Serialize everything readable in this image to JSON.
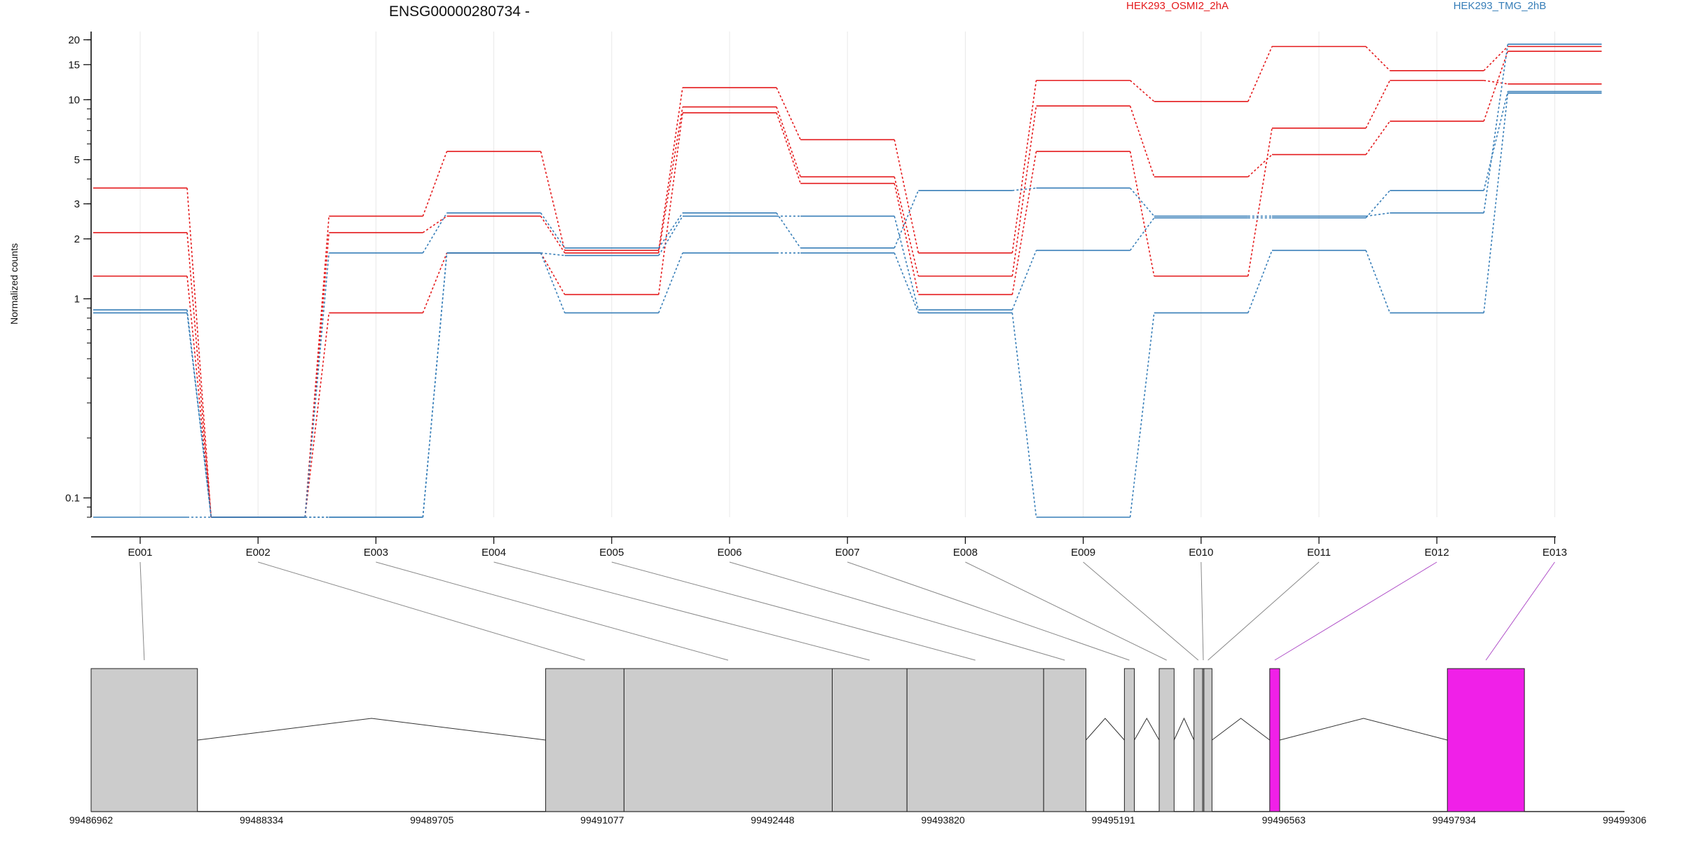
{
  "chart_data": {
    "type": "line",
    "title": "ENSG00000280734 -",
    "ylabel": "Normalized counts",
    "yscale": "log",
    "ylim": [
      0.08,
      22
    ],
    "yticks": [
      0.1,
      1,
      2,
      3,
      5,
      10,
      15,
      20
    ],
    "ytick_labels": [
      "0.1",
      "1",
      "2",
      "3",
      "5",
      "10",
      "15",
      "20"
    ],
    "grid": true,
    "legend_position": "top",
    "categories": [
      "E001",
      "E002",
      "E003",
      "E004",
      "E005",
      "E006",
      "E007",
      "E008",
      "E009",
      "E010",
      "E011",
      "E012",
      "E013"
    ],
    "groups": [
      {
        "name": "HEK293_OSMI2_2hA",
        "color": "#e41a1c"
      },
      {
        "name": "HEK293_TMG_2hB",
        "color": "#377eb8"
      }
    ],
    "series": [
      {
        "group": 0,
        "values": [
          3.6,
          0.08,
          2.6,
          5.5,
          1.75,
          11.5,
          6.3,
          1.7,
          12.5,
          9.8,
          18.5,
          14.0,
          18.5
        ]
      },
      {
        "group": 0,
        "values": [
          2.15,
          0.08,
          2.15,
          2.6,
          1.7,
          9.2,
          4.1,
          1.3,
          9.3,
          4.1,
          5.3,
          7.8,
          17.5
        ]
      },
      {
        "group": 0,
        "values": [
          1.3,
          0.08,
          0.85,
          1.7,
          1.05,
          8.6,
          3.8,
          1.05,
          5.5,
          1.3,
          7.2,
          12.5,
          12.0
        ]
      },
      {
        "group": 1,
        "values": [
          0.88,
          0.08,
          1.7,
          2.7,
          1.8,
          2.7,
          1.8,
          3.5,
          3.6,
          2.6,
          2.6,
          2.7,
          19.0
        ]
      },
      {
        "group": 1,
        "values": [
          0.85,
          0.08,
          0.08,
          1.7,
          1.65,
          2.6,
          2.6,
          0.88,
          1.75,
          2.55,
          2.55,
          3.5,
          11.0
        ]
      },
      {
        "group": 1,
        "values": [
          0.08,
          0.08,
          0.08,
          1.7,
          0.85,
          1.7,
          1.7,
          0.85,
          0.08,
          0.85,
          1.75,
          0.85,
          10.8
        ]
      }
    ],
    "gene_model": {
      "coordinate_labels": [
        "99486962",
        "99488334",
        "99489705",
        "99491077",
        "99492448",
        "99493820",
        "99495191",
        "99496563",
        "99497934",
        "99499306"
      ],
      "coordinate_range": [
        99486962,
        99499306
      ],
      "normal_color": "#cccccc",
      "highlight_color": "#f020e8",
      "exons": [
        {
          "id": "E001",
          "start": 99486962,
          "end": 99487818,
          "highlight": false
        },
        {
          "id": "E002",
          "start": 99490621,
          "end": 99491252,
          "highlight": false
        },
        {
          "id": "E003",
          "start": 99491252,
          "end": 99492928,
          "highlight": false
        },
        {
          "id": "E004",
          "start": 99492928,
          "end": 99493530,
          "highlight": false
        },
        {
          "id": "E005",
          "start": 99493530,
          "end": 99494630,
          "highlight": false
        },
        {
          "id": "E006",
          "start": 99494630,
          "end": 99494970,
          "highlight": false
        },
        {
          "id": "E007",
          "start": 99495280,
          "end": 99495360,
          "highlight": false
        },
        {
          "id": "E008",
          "start": 99495560,
          "end": 99495680,
          "highlight": false
        },
        {
          "id": "E009",
          "start": 99495840,
          "end": 99495910,
          "highlight": false
        },
        {
          "id": "E010",
          "start": 99495910,
          "end": 99495920,
          "highlight": false
        },
        {
          "id": "E011",
          "start": 99495920,
          "end": 99495985,
          "highlight": false
        },
        {
          "id": "E012",
          "start": 99496450,
          "end": 99496530,
          "highlight": true
        },
        {
          "id": "E013",
          "start": 99497880,
          "end": 99498500,
          "highlight": true
        }
      ]
    }
  }
}
